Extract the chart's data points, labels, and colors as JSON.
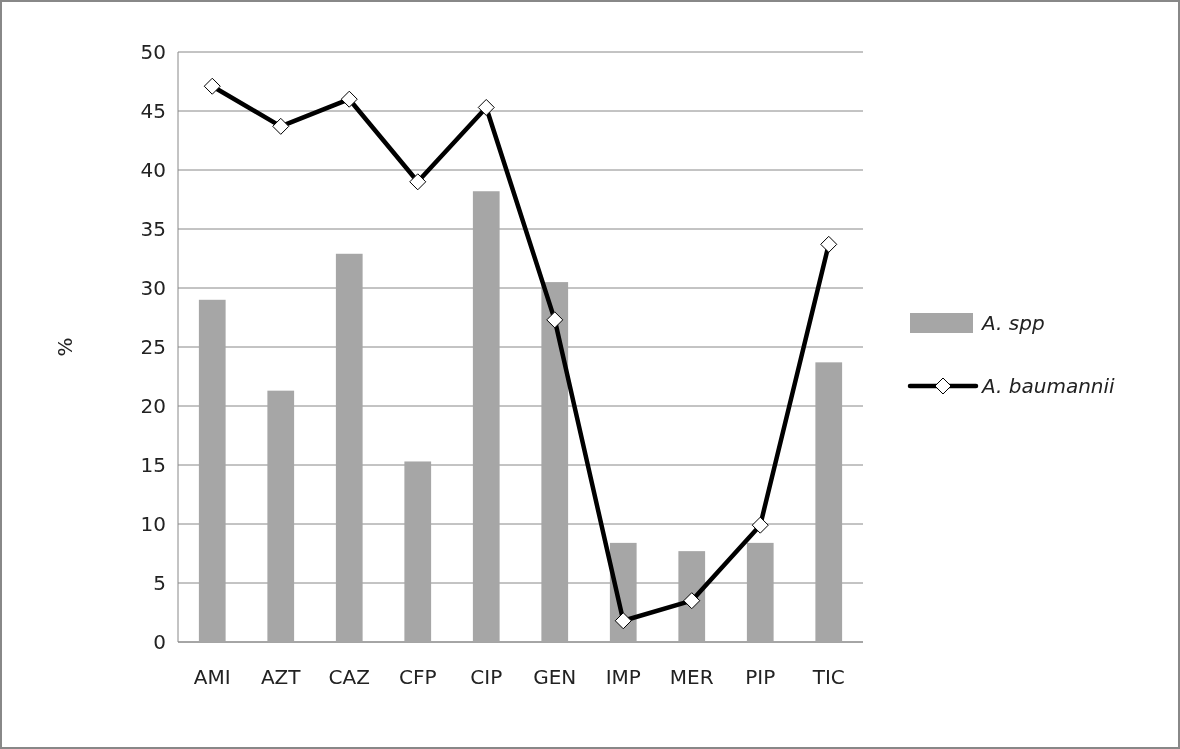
{
  "chart_data": {
    "type": "bar",
    "ylabel": "%",
    "categories": [
      "AMI",
      "AZT",
      "CAZ",
      "CFP",
      "CIP",
      "GEN",
      "IMP",
      "MER",
      "PIP",
      "TIC"
    ],
    "series": [
      {
        "name": "A. spp",
        "color": "#a6a6a6",
        "values": [
          29.0,
          21.3,
          32.9,
          15.3,
          38.2,
          30.5,
          8.4,
          7.7,
          8.4,
          23.7
        ]
      },
      {
        "name": "A. baumannii",
        "type": "line",
        "color": "#000000",
        "marker": "diamond",
        "values": [
          47.1,
          43.7,
          46.0,
          39.0,
          45.3,
          27.3,
          1.8,
          3.5,
          9.9,
          33.7
        ]
      }
    ],
    "ylim": [
      0,
      50
    ],
    "yticks": [
      0,
      5,
      10,
      15,
      20,
      25,
      30,
      35,
      40,
      45,
      50
    ],
    "grid": "y",
    "legend": "right"
  }
}
